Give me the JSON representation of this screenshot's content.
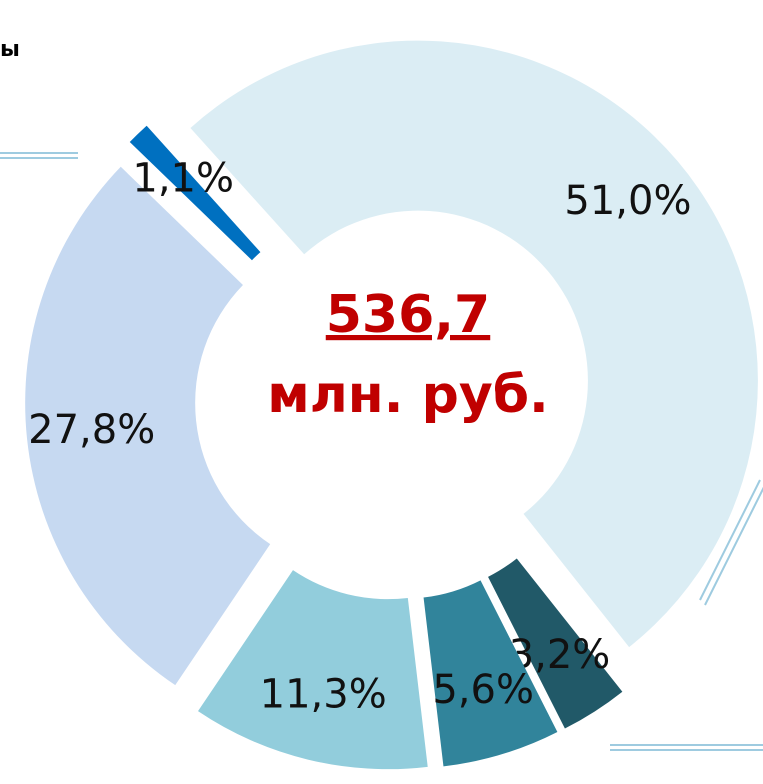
{
  "caption": "ы",
  "chart_data": {
    "type": "donut",
    "center_value": "536,7",
    "center_unit": "млн. руб.",
    "values": [
      51.0,
      3.2,
      5.6,
      11.3,
      27.8,
      1.1
    ],
    "value_labels": [
      "51,0%",
      "3,2%",
      "5,6%",
      "11,3%",
      "27,8%",
      "1,1%"
    ],
    "colors": [
      "#dbedf4",
      "#215968",
      "#31849b",
      "#92cddc",
      "#c6d9f1",
      "#0070c0"
    ]
  }
}
